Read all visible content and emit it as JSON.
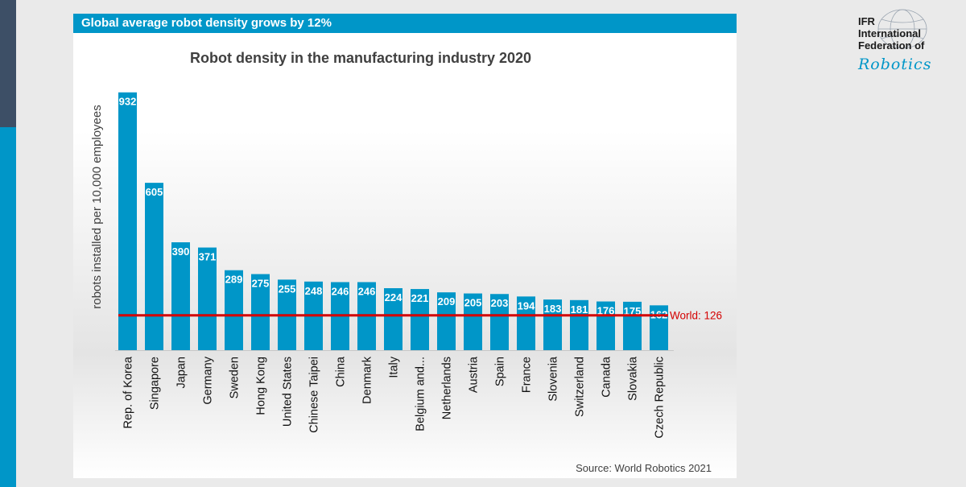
{
  "banner": {
    "text": "Global average robot density grows by 12%"
  },
  "logo": {
    "line1": "IFR",
    "line2": "International",
    "line3": "Federation of",
    "script": "Robotics"
  },
  "colors": {
    "bar": "#0096c8",
    "world_line": "#d40000",
    "banner": "#0096c8"
  },
  "chart_data": {
    "type": "bar",
    "title": "Robot density in the manufacturing industry 2020",
    "xlabel": "",
    "ylabel": "robots installed per 10,000 employees",
    "categories": [
      "Rep. of Korea",
      "Singapore",
      "Japan",
      "Germany",
      "Sweden",
      "Hong Kong",
      "United States",
      "Chinese Taipei",
      "China",
      "Denmark",
      "Italy",
      "Belgium and...",
      "Netherlands",
      "Austria",
      "Spain",
      "France",
      "Slovenia",
      "Switzerland",
      "Canada",
      "Slovakia",
      "Czech Republic"
    ],
    "values": [
      932,
      605,
      390,
      371,
      289,
      275,
      255,
      248,
      246,
      246,
      224,
      221,
      209,
      205,
      203,
      194,
      183,
      181,
      176,
      175,
      162
    ],
    "value_labels": [
      "932",
      "605",
      "390",
      "371",
      "289",
      "275",
      "255",
      "248",
      "246",
      "246",
      "224",
      "221",
      "209",
      "205",
      "203",
      "194",
      "183",
      "181",
      "176",
      "175",
      "162"
    ],
    "ylim": [
      0,
      940
    ],
    "reference_line": {
      "value": 126,
      "label": "World: 126"
    },
    "source": "Source: World Robotics 2021",
    "grid": false
  }
}
